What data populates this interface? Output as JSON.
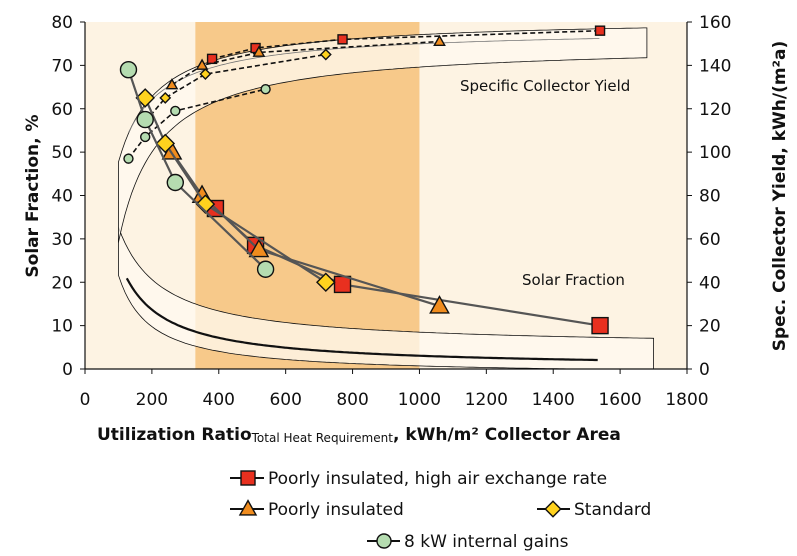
{
  "chart_data": {
    "type": "line",
    "xlabel": {
      "main": "Utilization Ratio",
      "subscript": "Total Heat Requirement",
      "rest": ", kWh/m² Collector Area"
    },
    "ylabel": "Solar Fraction, %",
    "y2label": "Spec. Collector Yield, kWh/(m²a)",
    "xlim": [
      0,
      1800
    ],
    "ylim": [
      0,
      80
    ],
    "y2lim": [
      0,
      160
    ],
    "x_ticks": [
      "0",
      "200",
      "400",
      "600",
      "800",
      "1000",
      "1200",
      "1400",
      "1600",
      "1800"
    ],
    "y_ticks": [
      "0",
      "10",
      "20",
      "30",
      "40",
      "50",
      "60",
      "70",
      "80"
    ],
    "y2_ticks": [
      "0",
      "20",
      "40",
      "60",
      "80",
      "100",
      "120",
      "140",
      "160"
    ],
    "annotations": {
      "solar_fraction": "Solar Fraction",
      "specific_collector_yield": "Specific Collector Yield"
    },
    "shaded_region_x": [
      330,
      1000
    ],
    "series": [
      {
        "name": "Poorly insulated, high air exchange rate",
        "marker": "square",
        "color": "#e8301f",
        "solar_fraction": {
          "x": [
            390,
            510,
            770,
            1540
          ],
          "y": [
            37,
            28.5,
            19.5,
            10
          ]
        },
        "specific_yield": {
          "x": [
            380,
            510,
            770,
            1540
          ],
          "y": [
            143,
            148,
            152,
            156
          ]
        }
      },
      {
        "name": "Poorly insulated",
        "marker": "triangle",
        "color": "#f08c1e",
        "solar_fraction": {
          "x": [
            260,
            350,
            520,
            1060
          ],
          "y": [
            50,
            40,
            27.5,
            14.5
          ]
        },
        "specific_yield": {
          "x": [
            260,
            350,
            520,
            1060
          ],
          "y": [
            131,
            140,
            146,
            151
          ]
        }
      },
      {
        "name": "Standard",
        "marker": "diamond",
        "color": "#ffd21e",
        "solar_fraction": {
          "x": [
            180,
            240,
            360,
            720
          ],
          "y": [
            62.5,
            52,
            38,
            20
          ]
        },
        "specific_yield": {
          "x": [
            180,
            240,
            360,
            720
          ],
          "y": [
            114,
            125,
            136,
            145
          ]
        }
      },
      {
        "name": "8 kW internal gains",
        "marker": "circle",
        "color": "#b5dcb0",
        "solar_fraction": {
          "x": [
            130,
            180,
            270,
            540
          ],
          "y": [
            69,
            57.5,
            43,
            23
          ]
        },
        "specific_yield": {
          "x": [
            130,
            180,
            270,
            540
          ],
          "y": [
            97,
            107,
            119,
            129
          ]
        }
      }
    ],
    "legend_placement": "bottom"
  }
}
